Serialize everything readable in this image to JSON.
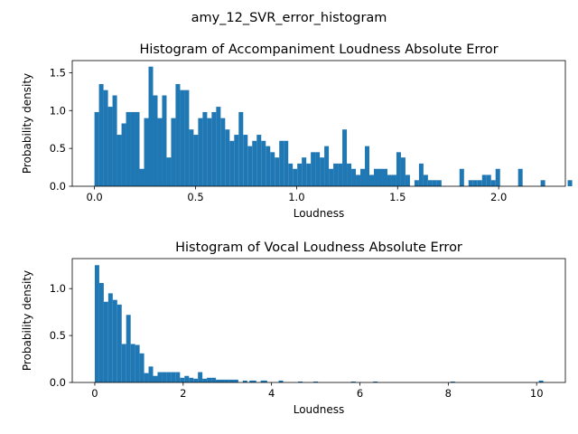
{
  "figure": {
    "suptitle": "amy_12_SVR_error_histogram"
  },
  "chart_data": [
    {
      "type": "bar",
      "title": "Histogram of Accompaniment Loudness Absolute Error",
      "xlabel": "Loudness",
      "ylabel": "Probability density",
      "xlim": [
        -0.11,
        2.33
      ],
      "ylim": [
        0,
        1.66
      ],
      "xticks": [
        0.0,
        0.5,
        1.0,
        1.5,
        2.0
      ],
      "xtick_labels": [
        "0.0",
        "0.5",
        "1.0",
        "1.5",
        "2.0"
      ],
      "yticks": [
        0.0,
        0.5,
        1.0,
        1.5
      ],
      "ytick_labels": [
        "0.0",
        "0.5",
        "1.0",
        "1.5"
      ],
      "bin_start": 0.0,
      "bin_width": 0.0223,
      "color": "#1f77b4",
      "values": [
        0.98,
        1.35,
        1.27,
        1.05,
        1.2,
        0.68,
        0.83,
        0.98,
        0.98,
        0.98,
        0.23,
        0.9,
        1.58,
        1.2,
        0.9,
        1.2,
        0.38,
        0.9,
        1.35,
        1.27,
        1.27,
        0.75,
        0.68,
        0.9,
        0.98,
        0.9,
        0.98,
        1.05,
        0.9,
        0.75,
        0.6,
        0.68,
        0.98,
        0.68,
        0.53,
        0.6,
        0.68,
        0.6,
        0.53,
        0.45,
        0.38,
        0.6,
        0.6,
        0.3,
        0.23,
        0.3,
        0.38,
        0.3,
        0.45,
        0.45,
        0.38,
        0.53,
        0.23,
        0.3,
        0.3,
        0.75,
        0.3,
        0.23,
        0.15,
        0.23,
        0.53,
        0.15,
        0.23,
        0.23,
        0.23,
        0.15,
        0.15,
        0.45,
        0.38,
        0.15,
        0.0,
        0.08,
        0.3,
        0.15,
        0.08,
        0.08,
        0.08,
        0.0,
        0.0,
        0.0,
        0.0,
        0.23,
        0.0,
        0.08,
        0.08,
        0.08,
        0.15,
        0.15,
        0.08,
        0.23,
        0.0,
        0.0,
        0.0,
        0.0,
        0.23,
        0.0,
        0.0,
        0.0,
        0.0,
        0.08,
        0.0,
        0.0,
        0.0,
        0.0,
        0.0,
        0.08,
        0.0,
        0.0,
        0.0,
        0.0,
        0.0,
        0.0,
        0.0,
        0.0,
        0.0,
        0.0,
        0.0,
        0.0,
        0.0,
        0.08
      ]
    },
    {
      "type": "bar",
      "title": "Histogram of Vocal Loudness Absolute Error",
      "xlabel": "Loudness",
      "ylabel": "Probability density",
      "xlim": [
        -0.51,
        10.65
      ],
      "ylim": [
        0,
        1.32
      ],
      "xticks": [
        0,
        2,
        4,
        6,
        8,
        10
      ],
      "xtick_labels": [
        "0",
        "2",
        "4",
        "6",
        "8",
        "10"
      ],
      "yticks": [
        0.0,
        0.5,
        1.0
      ],
      "ytick_labels": [
        "0.0",
        "0.5",
        "1.0"
      ],
      "bin_start": 0.0,
      "bin_width": 0.1015,
      "color": "#1f77b4",
      "values": [
        1.25,
        1.06,
        0.86,
        0.95,
        0.88,
        0.83,
        0.41,
        0.72,
        0.41,
        0.4,
        0.31,
        0.1,
        0.17,
        0.07,
        0.11,
        0.11,
        0.11,
        0.11,
        0.11,
        0.05,
        0.07,
        0.05,
        0.04,
        0.11,
        0.04,
        0.05,
        0.05,
        0.03,
        0.03,
        0.03,
        0.03,
        0.03,
        0.0,
        0.02,
        0.0,
        0.02,
        0.0,
        0.02,
        0.0,
        0.0,
        0.0,
        0.02,
        0.0,
        0.0,
        0.0,
        0.0,
        0.0,
        0.0,
        0.0,
        0.0,
        0.0,
        0.0,
        0.0,
        0.0,
        0.0,
        0.0,
        0.0,
        0.0,
        0.0,
        0.0,
        0.0,
        0.0,
        0.0,
        0.0,
        0.0,
        0.0,
        0.0,
        0.0,
        0.0,
        0.0,
        0.0,
        0.0,
        0.0,
        0.0,
        0.0,
        0.0,
        0.0,
        0.0,
        0.0,
        0.0,
        0.0,
        0.0,
        0.0,
        0.0,
        0.0,
        0.0,
        0.0,
        0.0,
        0.0,
        0.0,
        0.0,
        0.0,
        0.0,
        0.0,
        0.0,
        0.0,
        0.0,
        0.0,
        0.0,
        0.0
      ],
      "extra_bars": [
        {
          "x": 3.1,
          "v": 0.02
        },
        {
          "x": 3.5,
          "v": 0.02
        },
        {
          "x": 3.8,
          "v": 0.02
        },
        {
          "x": 4.6,
          "v": 0.01
        },
        {
          "x": 4.95,
          "v": 0.01
        },
        {
          "x": 5.8,
          "v": 0.01
        },
        {
          "x": 6.3,
          "v": 0.01
        },
        {
          "x": 8.05,
          "v": 0.01
        },
        {
          "x": 10.05,
          "v": 0.02
        }
      ]
    }
  ]
}
